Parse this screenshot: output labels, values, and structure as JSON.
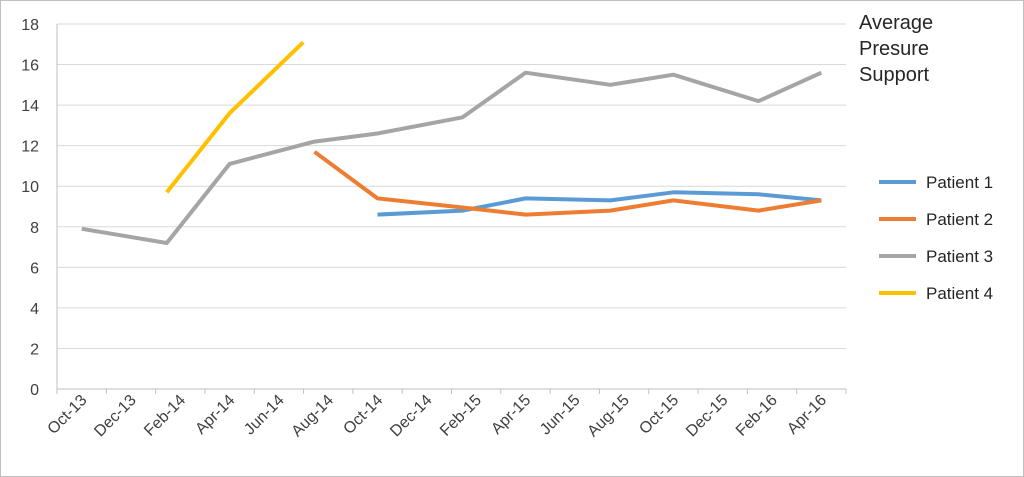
{
  "chart_data": {
    "type": "line",
    "title": "Average Presure Support",
    "title_lines": [
      "Average",
      "Presure",
      "Support"
    ],
    "xlabel": "",
    "ylabel": "",
    "ylim": [
      0,
      18
    ],
    "yticks": [
      0,
      2,
      4,
      6,
      8,
      10,
      12,
      14,
      16,
      18
    ],
    "x_tick_labels": [
      "Oct-13",
      "Dec-13",
      "Feb-14",
      "Apr-14",
      "Jun-14",
      "Aug-14",
      "Oct-14",
      "Dec-14",
      "Feb-15",
      "Apr-15",
      "Jun-15",
      "Aug-15",
      "Oct-15",
      "Dec-15",
      "Feb-16",
      "Apr-16"
    ],
    "grid": true,
    "legend_position": "right",
    "series": [
      {
        "name": "Patient 1",
        "color": "#5b9bd5",
        "points": [
          {
            "x": "2014-10-01",
            "y": 8.6
          },
          {
            "x": "2015-01-15",
            "y": 8.8
          },
          {
            "x": "2015-04-01",
            "y": 9.4
          },
          {
            "x": "2015-07-15",
            "y": 9.3
          },
          {
            "x": "2015-10-01",
            "y": 9.7
          },
          {
            "x": "2016-01-15",
            "y": 9.6
          },
          {
            "x": "2016-04-01",
            "y": 9.3
          }
        ]
      },
      {
        "name": "Patient 2",
        "color": "#ed7d31",
        "points": [
          {
            "x": "2014-07-15",
            "y": 11.7
          },
          {
            "x": "2014-10-01",
            "y": 9.4
          },
          {
            "x": "2015-01-15",
            "y": 8.95
          },
          {
            "x": "2015-04-01",
            "y": 8.6
          },
          {
            "x": "2015-07-15",
            "y": 8.8
          },
          {
            "x": "2015-10-01",
            "y": 9.3
          },
          {
            "x": "2016-01-15",
            "y": 8.8
          },
          {
            "x": "2016-04-01",
            "y": 9.3
          }
        ]
      },
      {
        "name": "Patient 3",
        "color": "#a5a5a5",
        "points": [
          {
            "x": "2013-10-01",
            "y": 7.9
          },
          {
            "x": "2014-01-15",
            "y": 7.2
          },
          {
            "x": "2014-04-01",
            "y": 11.1
          },
          {
            "x": "2014-07-15",
            "y": 12.2
          },
          {
            "x": "2014-10-01",
            "y": 12.6
          },
          {
            "x": "2015-01-15",
            "y": 13.4
          },
          {
            "x": "2015-04-01",
            "y": 15.6
          },
          {
            "x": "2015-07-15",
            "y": 15.0
          },
          {
            "x": "2015-10-01",
            "y": 15.5
          },
          {
            "x": "2016-01-15",
            "y": 14.2
          },
          {
            "x": "2016-04-01",
            "y": 15.6
          }
        ]
      },
      {
        "name": "Patient 4",
        "color": "#ffc000",
        "points": [
          {
            "x": "2014-01-15",
            "y": 9.7
          },
          {
            "x": "2014-04-01",
            "y": 13.6
          },
          {
            "x": "2014-07-01",
            "y": 17.1
          }
        ]
      }
    ]
  }
}
